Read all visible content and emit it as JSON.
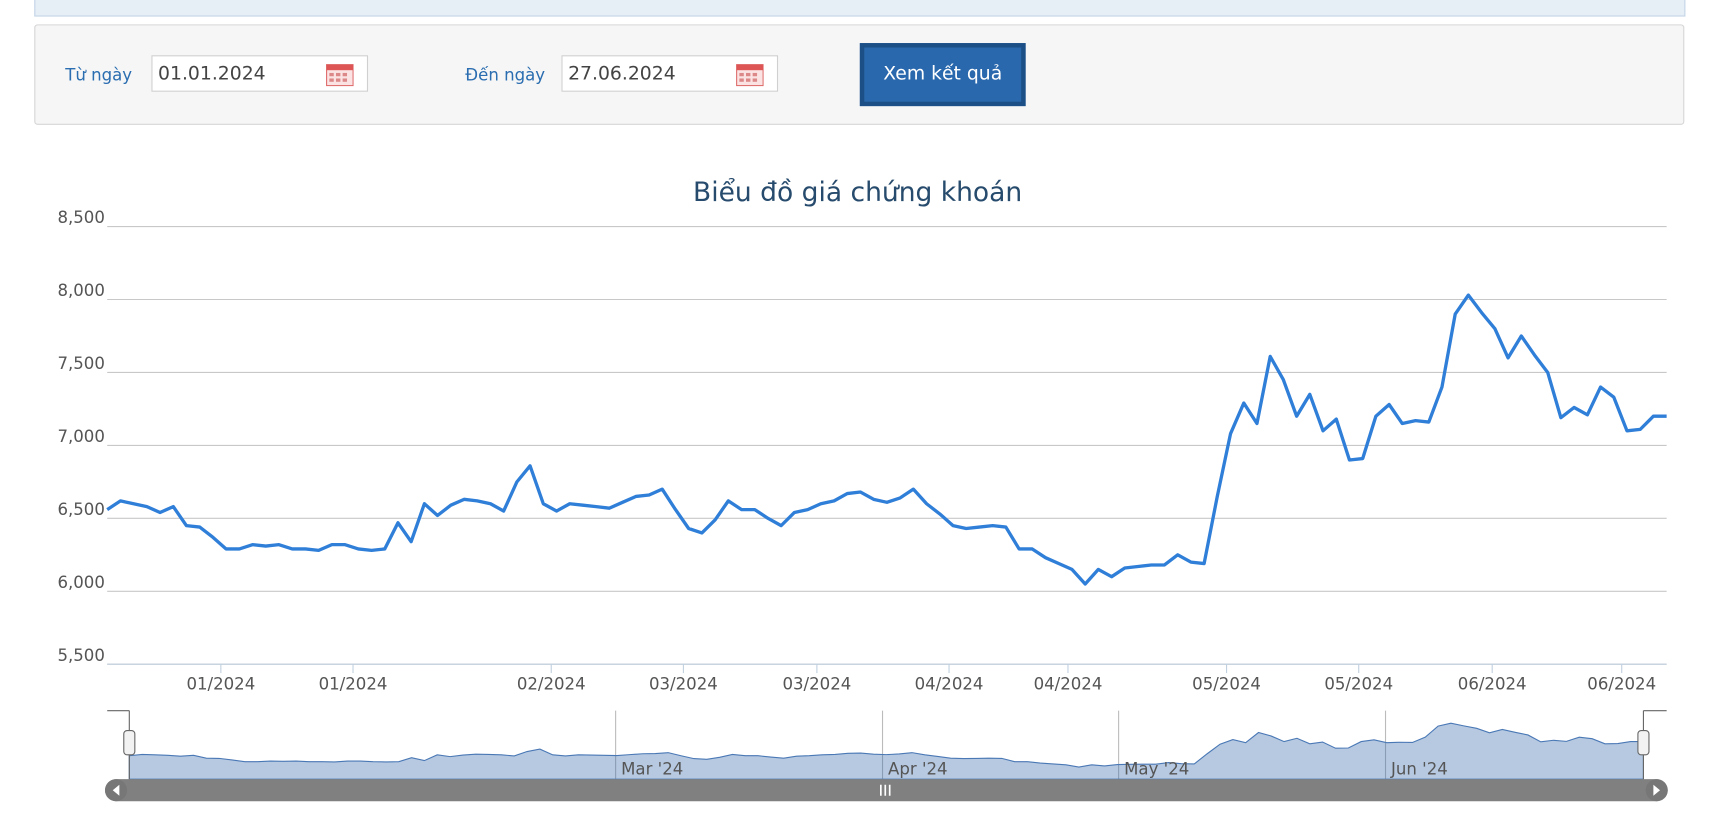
{
  "form": {
    "from_label": "Từ ngày",
    "from_value": "01.01.2024",
    "to_label": "Đến ngày",
    "to_value": "27.06.2024",
    "submit": "Xem kết quả"
  },
  "chart_data": {
    "type": "line",
    "title": "Biểu đồ giá chứng khoán",
    "color": "#2f7ed8",
    "values": [
      6560,
      6620,
      6600,
      6580,
      6540,
      6580,
      6450,
      6440,
      6370,
      6290,
      6290,
      6320,
      6310,
      6320,
      6290,
      6290,
      6280,
      6320,
      6320,
      6290,
      6280,
      6290,
      6470,
      6340,
      6600,
      6520,
      6590,
      6630,
      6620,
      6600,
      6550,
      6750,
      6860,
      6600,
      6550,
      6600,
      6590,
      6580,
      6570,
      6610,
      6650,
      6660,
      6700,
      6560,
      6430,
      6400,
      6490,
      6620,
      6560,
      6560,
      6500,
      6450,
      6540,
      6560,
      6600,
      6620,
      6670,
      6680,
      6630,
      6610,
      6640,
      6700,
      6600,
      6530,
      6450,
      6430,
      6440,
      6450,
      6440,
      6290,
      6290,
      6230,
      6190,
      6150,
      6050,
      6150,
      6100,
      6160,
      6170,
      6180,
      6180,
      6250,
      6200,
      6190,
      6650,
      7080,
      7290,
      7150,
      7610,
      7450,
      7200,
      7350,
      7100,
      7180,
      6900,
      6910,
      7200,
      7280,
      7150,
      7170,
      7160,
      7400,
      7900,
      8030,
      7910,
      7800,
      7600,
      7750,
      7620,
      7500,
      7190,
      7260,
      7210,
      7400,
      7330,
      7100,
      7110,
      7200,
      7200
    ],
    "xlim": [
      0,
      118
    ],
    "xticks": [
      {
        "value": 8.6,
        "label": "01/2024"
      },
      {
        "value": 18.6,
        "label": "01/2024"
      },
      {
        "value": 33.6,
        "label": "02/2024"
      },
      {
        "value": 43.6,
        "label": "03/2024"
      },
      {
        "value": 53.7,
        "label": "03/2024"
      },
      {
        "value": 63.7,
        "label": "04/2024"
      },
      {
        "value": 72.7,
        "label": "04/2024"
      },
      {
        "value": 84.7,
        "label": "05/2024"
      },
      {
        "value": 94.7,
        "label": "05/2024"
      },
      {
        "value": 104.8,
        "label": "06/2024"
      },
      {
        "value": 114.6,
        "label": "06/2024"
      }
    ],
    "ylim": [
      5500,
      8500
    ],
    "yticks": [
      {
        "value": 5500,
        "label": "5,500"
      },
      {
        "value": 6000,
        "label": "6,000"
      },
      {
        "value": 6500,
        "label": "6,500"
      },
      {
        "value": 7000,
        "label": "7,000"
      },
      {
        "value": 7500,
        "label": "7,500"
      },
      {
        "value": 8000,
        "label": "8,000"
      },
      {
        "value": 8500,
        "label": "8,500"
      }
    ],
    "grid": true,
    "navigator_ticks": [
      {
        "value": 37.9,
        "label": "Mar '24"
      },
      {
        "value": 58.7,
        "label": "Apr '24"
      },
      {
        "value": 77.1,
        "label": "May '24"
      },
      {
        "value": 97.9,
        "label": "Jun '24"
      }
    ]
  }
}
